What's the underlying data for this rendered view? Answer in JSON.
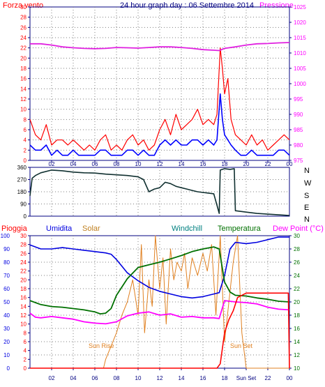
{
  "header": {
    "left_label": "Forza vento",
    "title": "24 hour graph day : 06 Settembre 2014",
    "right_label": "Pressione"
  },
  "direction_axis": {
    "letters": [
      "N",
      "W",
      "S",
      "E",
      "N"
    ]
  },
  "bottom_header": {
    "labels": [
      "Pioggia",
      "Umidita",
      "Solar",
      "Windchill",
      "Temperatura",
      "Dew Point (°C)"
    ]
  },
  "annotations": {
    "sunrise": "Sun Rise",
    "sunset": "Sun Set",
    "sunset_tick": "Sun Set"
  },
  "colors": {
    "wind_gust": "#ff0000",
    "wind_avg": "#0000ff",
    "pressure": "#e020e0",
    "direction": "#103030",
    "rain": "#ff0000",
    "humidity": "#0000e0",
    "solar": "#e08020",
    "windchill": "#008080",
    "temperature": "#007000",
    "dewpoint": "#ff00ff",
    "frame": "#000080"
  },
  "chart_data": [
    {
      "type": "line",
      "title": "24 hour graph day : 06 Settembre 2014",
      "x_tick_labels": [
        "02",
        "04",
        "06",
        "08",
        "10",
        "12",
        "14",
        "16",
        "18",
        "20",
        "22",
        "00"
      ],
      "x_range_hours": [
        0,
        24
      ],
      "left_axis": {
        "label": "Forza vento",
        "ticks": [
          0,
          2,
          4,
          6,
          8,
          10,
          12,
          14,
          16,
          18,
          20,
          22,
          24,
          26,
          28,
          30
        ],
        "range": [
          0,
          30
        ]
      },
      "right_axis": {
        "label": "Pressione",
        "ticks": [
          975,
          980,
          985,
          990,
          995,
          1000,
          1005,
          1010,
          1015,
          1020,
          1025
        ],
        "range": [
          975,
          1025
        ]
      },
      "grid": true,
      "series": [
        {
          "name": "Forza vento",
          "role": "gust",
          "axis": "left",
          "x": [
            0.0,
            0.5,
            1.0,
            1.5,
            2.0,
            2.5,
            3.0,
            3.5,
            4.0,
            4.5,
            5.0,
            5.5,
            6.0,
            6.5,
            7.0,
            7.5,
            8.0,
            8.5,
            9.0,
            9.5,
            10.0,
            10.5,
            11.0,
            11.5,
            12.0,
            12.5,
            13.0,
            13.5,
            14.0,
            14.5,
            15.0,
            15.5,
            16.0,
            16.5,
            17.0,
            17.3,
            17.6,
            17.8,
            18.0,
            18.3,
            18.6,
            19.0,
            19.5,
            20.0,
            20.5,
            21.0,
            21.5,
            22.0,
            22.5,
            23.0,
            23.5,
            24.0
          ],
          "values": [
            8,
            5,
            4,
            7,
            3,
            4,
            4,
            3,
            4,
            3,
            2,
            3,
            2,
            4,
            5,
            2,
            3,
            2,
            4,
            5,
            3,
            4,
            2,
            3,
            6,
            8,
            5,
            9,
            6,
            7,
            8,
            10,
            7,
            8,
            7,
            9,
            22,
            18,
            13,
            16,
            8,
            5,
            4,
            3,
            5,
            3,
            4,
            2,
            3,
            4,
            5,
            4
          ]
        },
        {
          "name": "Forza vento media",
          "role": "average",
          "axis": "left",
          "x": [
            0.0,
            0.5,
            1.0,
            1.5,
            2.0,
            2.5,
            3.0,
            3.5,
            4.0,
            4.5,
            5.0,
            5.5,
            6.0,
            6.5,
            7.0,
            7.5,
            8.0,
            8.5,
            9.0,
            9.5,
            10.0,
            10.5,
            11.0,
            11.5,
            12.0,
            12.5,
            13.0,
            13.5,
            14.0,
            14.5,
            15.0,
            15.5,
            16.0,
            16.5,
            17.0,
            17.3,
            17.6,
            17.8,
            18.0,
            18.3,
            18.6,
            19.0,
            19.5,
            20.0,
            20.5,
            21.0,
            21.5,
            22.0,
            22.5,
            23.0,
            23.5,
            24.0
          ],
          "values": [
            3,
            2,
            2,
            3,
            1,
            2,
            1,
            1,
            2,
            1,
            1,
            1,
            1,
            2,
            2,
            1,
            1,
            1,
            2,
            2,
            1,
            2,
            1,
            1,
            3,
            4,
            3,
            4,
            3,
            3,
            4,
            4,
            3,
            4,
            3,
            4,
            13,
            8,
            5,
            4,
            3,
            2,
            1,
            1,
            2,
            1,
            1,
            1,
            1,
            2,
            2,
            1
          ]
        },
        {
          "name": "Pressione",
          "axis": "right",
          "x": [
            0,
            1,
            2,
            3,
            4,
            5,
            6,
            7,
            8,
            9,
            10,
            11,
            12,
            13,
            14,
            15,
            16,
            17,
            17.5,
            18,
            19,
            20,
            21,
            22,
            23,
            24
          ],
          "values": [
            1013,
            1013,
            1012.6,
            1012,
            1011.7,
            1011.5,
            1011.4,
            1011.5,
            1011.8,
            1011.7,
            1011.6,
            1011.8,
            1012,
            1012,
            1011.8,
            1011.5,
            1011.1,
            1010.9,
            1010.8,
            1011.5,
            1012,
            1012.6,
            1013,
            1013.1,
            1013.3,
            1013.4
          ]
        }
      ]
    },
    {
      "type": "line",
      "x_tick_labels": [
        "02",
        "04",
        "06",
        "08",
        "10",
        "12",
        "14",
        "16",
        "18",
        "20",
        "22",
        "00"
      ],
      "x_range_hours": [
        0,
        24
      ],
      "left_axis": {
        "ticks": [
          0,
          90,
          180,
          270,
          360
        ],
        "range": [
          0,
          360
        ]
      },
      "right_axis": {
        "ticks": [
          "N",
          "W",
          "S",
          "E",
          "N"
        ]
      },
      "grid": true,
      "series": [
        {
          "name": "Direzione vento",
          "x": [
            0.0,
            0.2,
            0.5,
            1.0,
            2.0,
            3.0,
            4.0,
            5.0,
            6.0,
            7.0,
            8.0,
            9.0,
            10.0,
            10.5,
            11.0,
            11.5,
            12.0,
            12.5,
            13.0,
            13.5,
            14.0,
            14.5,
            15.0,
            15.5,
            16.0,
            16.5,
            17.0,
            17.3,
            17.5,
            17.6,
            18.0,
            18.5,
            18.9,
            19.0,
            20.0,
            21.0,
            22.0,
            23.0,
            24.0
          ],
          "values": [
            150,
            280,
            300,
            320,
            340,
            335,
            325,
            320,
            318,
            310,
            305,
            300,
            290,
            270,
            180,
            200,
            210,
            250,
            240,
            220,
            210,
            200,
            190,
            180,
            175,
            170,
            165,
            80,
            20,
            340,
            350,
            345,
            350,
            40,
            30,
            20,
            15,
            10,
            5
          ]
        }
      ]
    },
    {
      "type": "line",
      "x_tick_labels": [
        "02",
        "04",
        "06",
        "08",
        "10",
        "12",
        "14",
        "16",
        "18",
        "20",
        "22",
        "00"
      ],
      "x_range_hours": [
        0,
        24
      ],
      "left_axis_outer": {
        "label": "Umidita",
        "ticks": [
          0,
          10,
          20,
          30,
          40,
          50,
          60,
          70,
          80,
          90,
          100
        ],
        "range": [
          0,
          100
        ]
      },
      "left_axis_inner": {
        "label": "Pioggia",
        "ticks": [
          0,
          2,
          4,
          6,
          8,
          10,
          12,
          14,
          16,
          18,
          20,
          22,
          24,
          26,
          28,
          30
        ],
        "range": [
          0,
          30
        ]
      },
      "right_axis": {
        "label": "Dew Point (°C)",
        "ticks": [
          10,
          12,
          14,
          16,
          18,
          20,
          22,
          24,
          26,
          28,
          30
        ],
        "range": [
          10,
          30
        ]
      },
      "grid": true,
      "series": [
        {
          "name": "Umidita",
          "axis": "left_outer",
          "x": [
            0,
            1,
            2,
            3,
            4,
            5,
            6,
            7,
            7.5,
            8,
            9,
            10,
            11,
            12,
            13,
            14,
            15,
            16,
            17,
            17.5,
            18,
            18.5,
            19,
            20,
            21,
            22,
            23,
            24
          ],
          "values": [
            93,
            90,
            90,
            91,
            90,
            89,
            88,
            87,
            86,
            82,
            72,
            66,
            61,
            58,
            56,
            54,
            53,
            54,
            56,
            57,
            70,
            90,
            95,
            94,
            95,
            97,
            99,
            99
          ]
        },
        {
          "name": "Pioggia",
          "axis": "left_inner",
          "x": [
            0,
            17.3,
            17.6,
            18.0,
            18.4,
            18.8,
            19.2,
            20.0,
            23.9,
            24.0
          ],
          "values": [
            0,
            0,
            1,
            8,
            11,
            13,
            16,
            17,
            17,
            0
          ]
        },
        {
          "name": "Solar",
          "axis": "left_inner",
          "x": [
            0,
            6.8,
            7.0,
            7.5,
            8.0,
            8.5,
            9.0,
            9.5,
            10.0,
            10.3,
            10.6,
            11.0,
            11.3,
            11.6,
            12.0,
            12.3,
            12.6,
            13.0,
            13.3,
            13.6,
            14.0,
            14.3,
            14.6,
            15.0,
            15.5,
            16.0,
            16.4,
            16.8,
            17.2,
            17.6,
            18.0,
            18.4,
            18.8,
            19.2,
            19.6,
            20.0,
            24.0
          ],
          "values": [
            0,
            0,
            2,
            5,
            8,
            12,
            15,
            20,
            12,
            28,
            8,
            20,
            14,
            30,
            18,
            25,
            10,
            27,
            20,
            24,
            22,
            26,
            18,
            25,
            21,
            26,
            22,
            28,
            12,
            30,
            6,
            15,
            24,
            30,
            8,
            0,
            0
          ]
        },
        {
          "name": "Temperatura",
          "axis": "right",
          "x": [
            0,
            1,
            2,
            3,
            4,
            5,
            6,
            6.5,
            7,
            7.5,
            8,
            9,
            10,
            11,
            12,
            13,
            14,
            15,
            16,
            17,
            17.5,
            18,
            18.5,
            19,
            20,
            21,
            22,
            23,
            24
          ],
          "values": [
            20.2,
            19.6,
            19.3,
            19.2,
            19.0,
            18.8,
            18.5,
            18.2,
            18.3,
            19.0,
            21.0,
            23.5,
            25.2,
            25.6,
            26.0,
            26.5,
            27.0,
            27.6,
            28.0,
            28.3,
            28.0,
            23.0,
            21.5,
            21.0,
            20.9,
            20.6,
            20.4,
            20.1,
            20.0
          ]
        },
        {
          "name": "Dew Point (°C)",
          "axis": "right",
          "x": [
            0,
            0.5,
            1,
            2,
            3,
            4,
            5,
            6,
            7,
            8,
            9,
            10,
            11,
            12,
            13,
            14,
            15,
            16,
            17,
            17.5,
            18,
            19,
            20,
            21,
            22,
            23,
            24
          ],
          "values": [
            18.3,
            17.7,
            17.6,
            17.8,
            17.6,
            17.4,
            17.0,
            16.8,
            16.7,
            17.0,
            17.9,
            18.3,
            18.5,
            18.0,
            18.2,
            17.7,
            17.8,
            17.6,
            17.6,
            17.5,
            20.2,
            20.0,
            19.9,
            19.7,
            19.2,
            18.9,
            18.8
          ]
        },
        {
          "name": "Windchill",
          "axis": "right",
          "x": [
            0,
            1,
            2,
            3,
            4,
            5,
            6,
            6.5,
            7,
            7.5,
            8,
            9,
            10,
            11,
            12,
            13,
            14,
            15,
            16,
            17,
            17.5,
            18,
            18.5,
            19,
            20,
            21,
            22,
            23,
            24
          ],
          "values": [
            20.2,
            19.6,
            19.3,
            19.2,
            19.0,
            18.8,
            18.5,
            18.2,
            18.3,
            19.0,
            21.0,
            23.5,
            25.2,
            25.6,
            26.0,
            26.5,
            27.0,
            27.6,
            28.0,
            28.3,
            28.0,
            23.0,
            21.5,
            21.0,
            20.9,
            20.6,
            20.4,
            20.1,
            20.0
          ]
        }
      ]
    }
  ]
}
